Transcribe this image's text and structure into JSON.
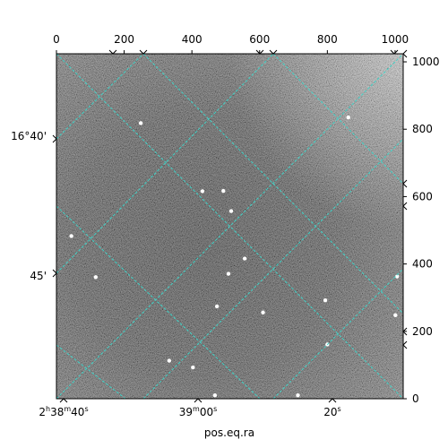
{
  "figure": {
    "axis_labels": {
      "bottom": "pos.eq.ra",
      "left": ""
    },
    "pixel_axes": {
      "x_range": [
        0,
        1024
      ],
      "y_range": [
        0,
        1024
      ],
      "top_ticks": [
        "0",
        "200",
        "400",
        "600",
        "800",
        "1000"
      ],
      "top_tick_values": [
        0,
        200,
        400,
        600,
        800,
        1000
      ],
      "right_ticks": [
        "0",
        "200",
        "400",
        "600",
        "800",
        "1000"
      ],
      "right_tick_values": [
        0,
        200,
        400,
        600,
        800,
        1000
      ]
    },
    "world_axes": {
      "ra_ticks": [
        {
          "hours": "2",
          "minutes": "38",
          "seconds": "40"
        },
        {
          "hours": "",
          "minutes": "39",
          "seconds": "00"
        },
        {
          "hours": "",
          "minutes": "",
          "seconds": "20"
        }
      ],
      "dec_ticks": [
        "16°40'",
        "45'"
      ]
    },
    "grid": {
      "shown": true,
      "style": "dashed",
      "color": "#3fd3c8"
    },
    "image": {
      "colormap": "gray",
      "stars": [
        {
          "x": 249,
          "y": 818
        },
        {
          "x": 431,
          "y": 616
        },
        {
          "x": 493,
          "y": 617
        },
        {
          "x": 516,
          "y": 557
        },
        {
          "x": 116,
          "y": 361
        },
        {
          "x": 794,
          "y": 292
        },
        {
          "x": 1001,
          "y": 248
        },
        {
          "x": 508,
          "y": 371
        },
        {
          "x": 44,
          "y": 483
        },
        {
          "x": 862,
          "y": 835
        },
        {
          "x": 713,
          "y": 10
        },
        {
          "x": 474,
          "y": 274
        },
        {
          "x": 610,
          "y": 256
        },
        {
          "x": 1006,
          "y": 363
        },
        {
          "x": 800,
          "y": 161
        },
        {
          "x": 403,
          "y": 93
        },
        {
          "x": 468,
          "y": 10
        },
        {
          "x": 333,
          "y": 113
        },
        {
          "x": 556,
          "y": 416
        }
      ]
    }
  }
}
